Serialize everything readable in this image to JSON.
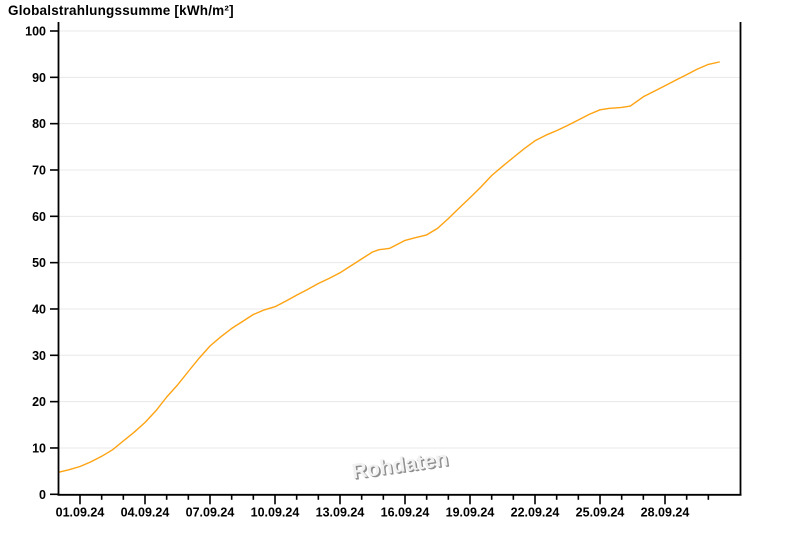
{
  "title": "Globalstrahlungssumme [kWh/m²]",
  "watermark": "Rohdaten",
  "colors": {
    "line": "#FFA312",
    "grid": "#E8E8E8",
    "axis": "#000000",
    "label": "#000000",
    "watermark": "#8F8F8F",
    "background": "#FFFFFF"
  },
  "chart_data": {
    "type": "line",
    "title": "Globalstrahlungssumme [kWh/m²]",
    "xlabel": "",
    "ylabel": "kWh/m²",
    "ylim": [
      0,
      100
    ],
    "grid": "horizontal",
    "legend": "none",
    "y_ticks": [
      0,
      10,
      20,
      30,
      40,
      50,
      60,
      70,
      80,
      90,
      100
    ],
    "x_major_ticks": [
      {
        "day": 1,
        "label": "01.09.24"
      },
      {
        "day": 4,
        "label": "04.09.24"
      },
      {
        "day": 7,
        "label": "07.09.24"
      },
      {
        "day": 10,
        "label": "10.09.24"
      },
      {
        "day": 13,
        "label": "13.09.24"
      },
      {
        "day": 16,
        "label": "16.09.24"
      },
      {
        "day": 19,
        "label": "19.09.24"
      },
      {
        "day": 22,
        "label": "22.09.24"
      },
      {
        "day": 25,
        "label": "25.09.24"
      },
      {
        "day": 28,
        "label": "28.09.24"
      }
    ],
    "x_minor_tick_days": [
      1,
      2,
      3,
      4,
      5,
      6,
      7,
      8,
      9,
      10,
      11,
      12,
      13,
      14,
      15,
      16,
      17,
      18,
      19,
      20,
      21,
      22,
      23,
      24,
      25,
      26,
      27,
      28,
      29,
      30
    ],
    "series": [
      {
        "name": "Globalstrahlungssumme",
        "color": "#FFA312",
        "dates": [
          "01.09.24",
          "02.09.24",
          "03.09.24",
          "04.09.24",
          "05.09.24",
          "06.09.24",
          "07.09.24",
          "08.09.24",
          "09.09.24",
          "10.09.24",
          "11.09.24",
          "12.09.24",
          "13.09.24",
          "14.09.24",
          "15.09.24",
          "16.09.24",
          "17.09.24",
          "18.09.24",
          "19.09.24",
          "20.09.24",
          "21.09.24",
          "22.09.24",
          "23.09.24",
          "24.09.24",
          "25.09.24",
          "26.09.24",
          "27.09.24",
          "28.09.24",
          "29.09.24",
          "30.09.24"
        ],
        "values": [
          6.0,
          8.2,
          11.5,
          15.5,
          21.0,
          26.5,
          32.0,
          35.8,
          38.8,
          40.5,
          43.0,
          45.5,
          47.8,
          50.8,
          52.9,
          54.8,
          56.0,
          59.5,
          64.0,
          68.8,
          72.7,
          76.3,
          78.5,
          80.8,
          83.0,
          83.5,
          85.8,
          88.2,
          90.6,
          92.8
        ],
        "curve": {
          "day": [
            0.05,
            0.5,
            1,
            1.5,
            2,
            2.5,
            3,
            3.5,
            4,
            4.5,
            5,
            5.5,
            6,
            6.5,
            7,
            7.5,
            8,
            8.5,
            9,
            9.5,
            10,
            10.5,
            11,
            11.5,
            12,
            12.5,
            13,
            13.5,
            14,
            14.5,
            14.8,
            15,
            15.3,
            15.5,
            16,
            16.5,
            17,
            17.5,
            18,
            18.5,
            19,
            19.5,
            20,
            20.5,
            21,
            21.5,
            22,
            22.5,
            23,
            23.5,
            24,
            24.5,
            25,
            25.4,
            26,
            26.4,
            27,
            27.5,
            28,
            28.5,
            29,
            29.5,
            30,
            30.5
          ],
          "value": [
            4.8,
            5.3,
            6.0,
            7.0,
            8.2,
            9.6,
            11.5,
            13.4,
            15.5,
            18.0,
            21.0,
            23.6,
            26.5,
            29.4,
            32.0,
            34.0,
            35.8,
            37.3,
            38.8,
            39.8,
            40.5,
            41.7,
            43.0,
            44.2,
            45.5,
            46.6,
            47.8,
            49.3,
            50.8,
            52.3,
            52.8,
            52.9,
            53.1,
            53.6,
            54.8,
            55.4,
            56.0,
            57.4,
            59.5,
            61.8,
            64.0,
            66.3,
            68.8,
            70.8,
            72.7,
            74.6,
            76.3,
            77.5,
            78.5,
            79.6,
            80.8,
            82.0,
            83.0,
            83.3,
            83.5,
            83.8,
            85.8,
            87.0,
            88.2,
            89.4,
            90.6,
            91.8,
            92.8,
            93.3
          ]
        }
      }
    ]
  }
}
